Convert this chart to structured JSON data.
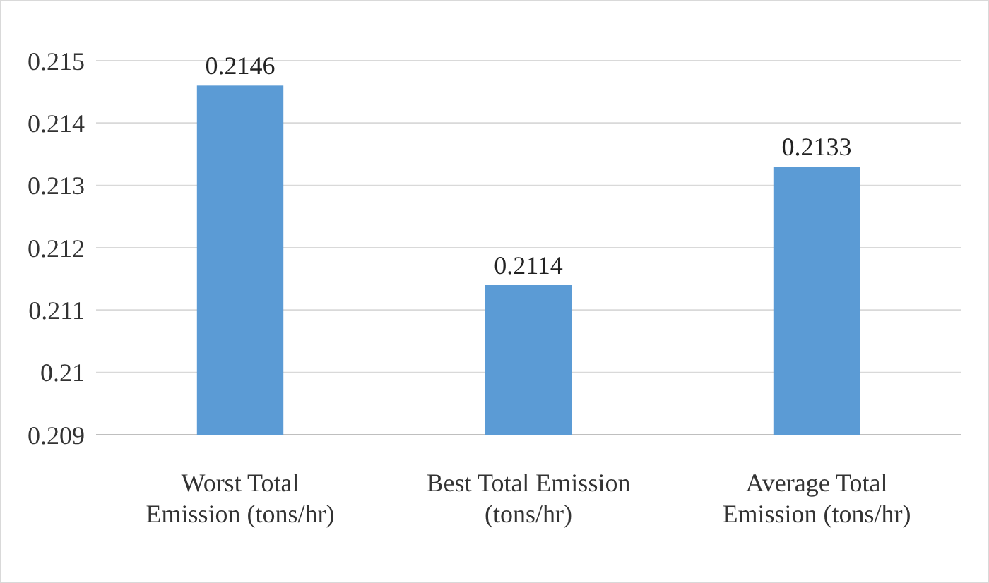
{
  "chart_data": {
    "type": "bar",
    "categories": [
      "Worst Total Emission (tons/hr)",
      "Best Total Emission (tons/hr)",
      "Average Total Emission (tons/hr)"
    ],
    "values": [
      0.2146,
      0.2114,
      0.2133
    ],
    "color": "#5b9bd5",
    "ylim": [
      0.209,
      0.215
    ],
    "yticks": [
      0.209,
      0.21,
      0.211,
      0.212,
      0.213,
      0.214,
      0.215
    ],
    "grid": "y",
    "data_labels": true
  }
}
